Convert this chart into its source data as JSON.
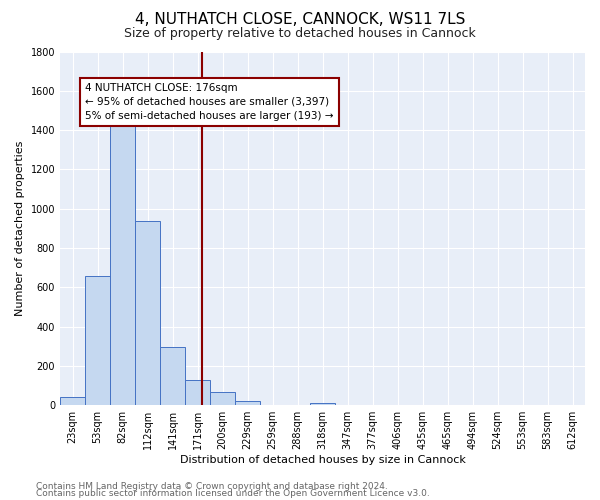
{
  "title": "4, NUTHATCH CLOSE, CANNOCK, WS11 7LS",
  "subtitle": "Size of property relative to detached houses in Cannock",
  "xlabel": "Distribution of detached houses by size in Cannock",
  "ylabel": "Number of detached properties",
  "bar_labels": [
    "23sqm",
    "53sqm",
    "82sqm",
    "112sqm",
    "141sqm",
    "171sqm",
    "200sqm",
    "229sqm",
    "259sqm",
    "288sqm",
    "318sqm",
    "347sqm",
    "377sqm",
    "406sqm",
    "435sqm",
    "465sqm",
    "494sqm",
    "524sqm",
    "553sqm",
    "583sqm",
    "612sqm"
  ],
  "bar_heights": [
    40,
    655,
    1470,
    935,
    295,
    130,
    65,
    20,
    0,
    0,
    10,
    0,
    0,
    0,
    0,
    0,
    0,
    0,
    0,
    0,
    0
  ],
  "bar_color": "#c5d8f0",
  "bar_edge_color": "#4472c4",
  "ylim": [
    0,
    1800
  ],
  "yticks": [
    0,
    200,
    400,
    600,
    800,
    1000,
    1200,
    1400,
    1600,
    1800
  ],
  "vline_color": "#8b0000",
  "annotation_text": "4 NUTHATCH CLOSE: 176sqm\n← 95% of detached houses are smaller (3,397)\n5% of semi-detached houses are larger (193) →",
  "annotation_box_color": "#ffffff",
  "annotation_box_edge_color": "#8b0000",
  "footnote1": "Contains HM Land Registry data © Crown copyright and database right 2024.",
  "footnote2": "Contains public sector information licensed under the Open Government Licence v3.0.",
  "plot_bg_color": "#e8eef8",
  "fig_bg_color": "#ffffff",
  "title_fontsize": 11,
  "subtitle_fontsize": 9,
  "label_fontsize": 8,
  "tick_fontsize": 7,
  "annotation_fontsize": 7.5,
  "footnote_fontsize": 6.5
}
